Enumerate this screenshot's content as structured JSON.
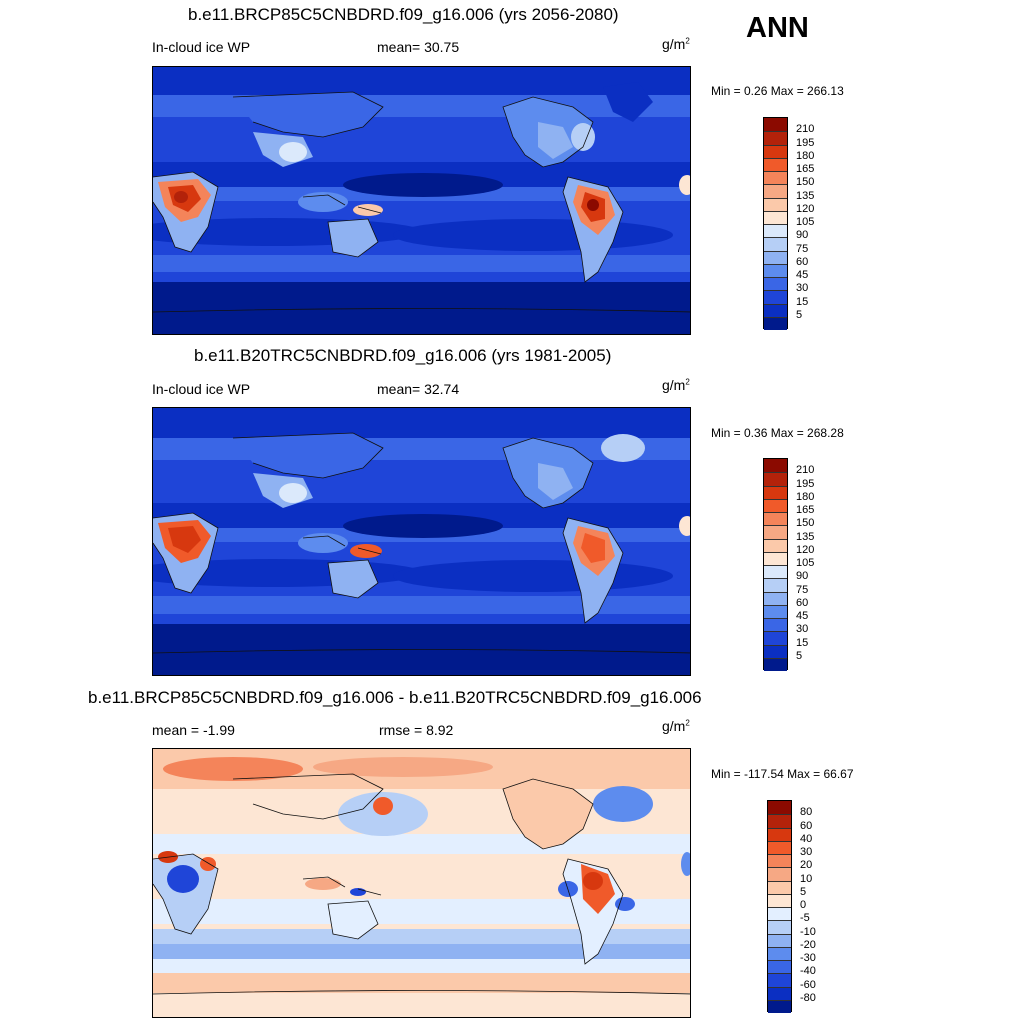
{
  "season": "ANN",
  "panels": [
    {
      "title": "b.e11.BRCP85C5CNBDRD.f09_g16.006 (yrs 2056-2080)",
      "left_label": "In-cloud ice WP",
      "center_label": "mean=  30.75",
      "unit_base": "g/m",
      "unit_exp": "2",
      "minmax": "Min =   0.26 Max = 266.13",
      "colorbar": {
        "levels": [
          "210",
          "195",
          "180",
          "165",
          "150",
          "135",
          "120",
          "105",
          "90",
          "75",
          "60",
          "45",
          "30",
          "15",
          "5"
        ],
        "colors": [
          "#8b0a00",
          "#b3220a",
          "#d7380f",
          "#f05a2a",
          "#f4845a",
          "#f6a884",
          "#fbc9aa",
          "#fde6d4",
          "#dbe9fb",
          "#b6cff6",
          "#8fb2f2",
          "#5d8cee",
          "#3a66e6",
          "#1f45d8",
          "#0b2fc2",
          "#001a8c"
        ]
      }
    },
    {
      "title": "b.e11.B20TRC5CNBDRD.f09_g16.006 (yrs 1981-2005)",
      "left_label": "In-cloud ice WP",
      "center_label": "mean=  32.74",
      "unit_base": "g/m",
      "unit_exp": "2",
      "minmax": "Min =   0.36 Max = 268.28",
      "colorbar": {
        "levels": [
          "210",
          "195",
          "180",
          "165",
          "150",
          "135",
          "120",
          "105",
          "90",
          "75",
          "60",
          "45",
          "30",
          "15",
          "5"
        ],
        "colors": [
          "#8b0a00",
          "#b3220a",
          "#d7380f",
          "#f05a2a",
          "#f4845a",
          "#f6a884",
          "#fbc9aa",
          "#fde6d4",
          "#dbe9fb",
          "#b6cff6",
          "#8fb2f2",
          "#5d8cee",
          "#3a66e6",
          "#1f45d8",
          "#0b2fc2",
          "#001a8c"
        ]
      }
    },
    {
      "title": "b.e11.BRCP85C5CNBDRD.f09_g16.006 - b.e11.B20TRC5CNBDRD.f09_g16.006",
      "left_label": "mean =  -1.99",
      "center_label": "rmse =   8.92",
      "unit_base": "g/m",
      "unit_exp": "2",
      "minmax": "Min = -117.54 Max =  66.67",
      "colorbar": {
        "levels": [
          "80",
          "60",
          "40",
          "30",
          "20",
          "10",
          "5",
          "0",
          "-5",
          "-10",
          "-20",
          "-30",
          "-40",
          "-60",
          "-80"
        ],
        "colors": [
          "#8b0a00",
          "#b3220a",
          "#d7380f",
          "#f05a2a",
          "#f4845a",
          "#f6a884",
          "#fbc9aa",
          "#fde6d4",
          "#e3efff",
          "#b6cff6",
          "#8fb2f2",
          "#5d8cee",
          "#3a66e6",
          "#1f45d8",
          "#0b2fc2",
          "#001a8c"
        ]
      }
    }
  ]
}
